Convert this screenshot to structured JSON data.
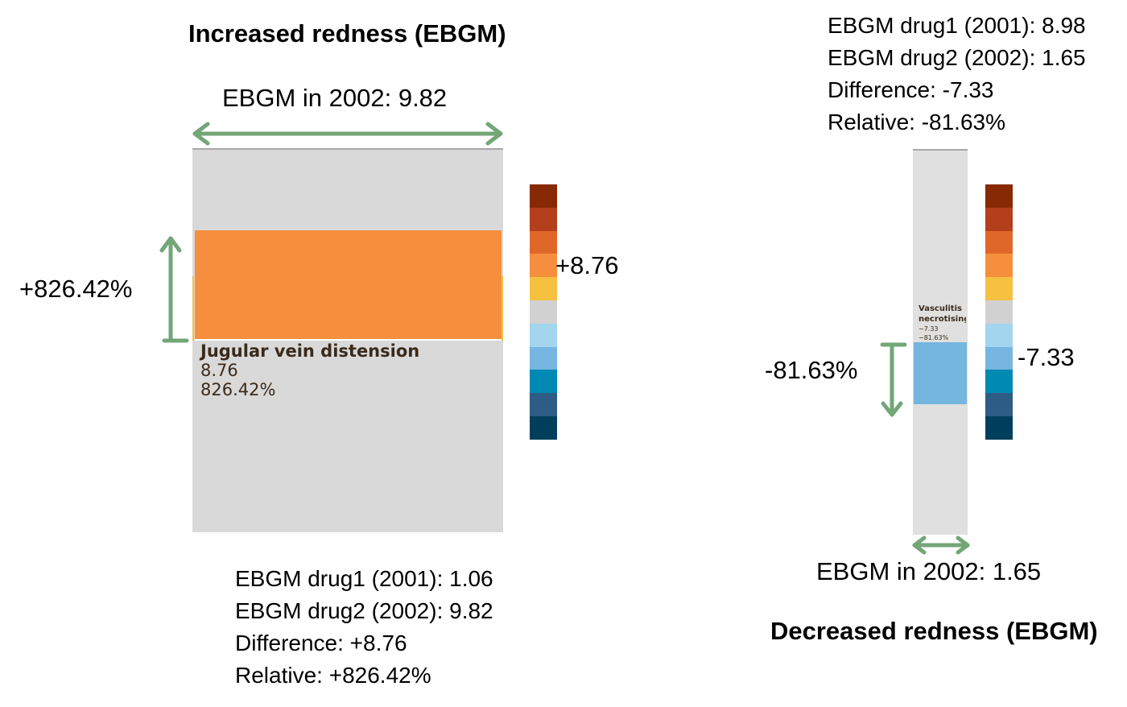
{
  "left": {
    "title": "Increased redness (EBGM)",
    "width_label": "EBGM in 2002: 9.82",
    "relative_label": "+826.42%",
    "difference_label": "+8.76",
    "cell": {
      "name": "Jugular vein distension",
      "difference": "8.76",
      "relative": "826.42%",
      "color": "#f58f3d"
    },
    "stats": [
      "EBGM drug1 (2001):  1.06",
      "EBGM drug2 (2002):  9.82",
      "Difference: +8.76",
      "Relative:  +826.42%"
    ]
  },
  "right": {
    "title": "Decreased redness (EBGM)",
    "width_label": "EBGM in 2002: 1.65",
    "relative_label": "-81.63%",
    "difference_label": "-7.33",
    "cell": {
      "name_line1": "Vasculitis",
      "name_line2": "necrotising",
      "difference": "−7.33",
      "relative": "−81.63%",
      "color": "#75b6df"
    },
    "stats": [
      "EBGM drug1 (2001):  8.98",
      "EBGM drug2 (2002):  1.65",
      "Difference: -7.33",
      "Relative: -81.63%"
    ]
  },
  "color_scale": [
    "#872a03",
    "#b43f1c",
    "#e0672a",
    "#f58f3d",
    "#f6c041",
    "#d1d1d1",
    "#a3d5ee",
    "#77b6e0",
    "#0089b3",
    "#2d5c85",
    "#003f5c"
  ],
  "colors": {
    "arrow": "#73a677",
    "box_bg": "#d9d9d9",
    "box_border": "#a8a8a8"
  }
}
